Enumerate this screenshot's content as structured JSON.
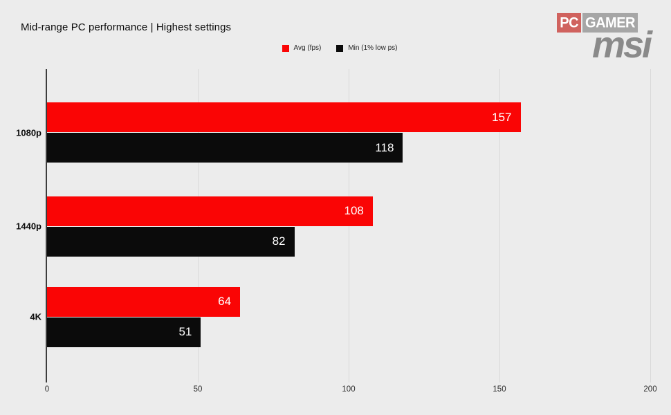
{
  "page": {
    "title": "Mid-range PC performance | Highest settings",
    "background": "#ececec"
  },
  "logos": {
    "pcgamer": {
      "pc_text": "PC",
      "gamer_text": "GAMER",
      "pc_bg": "#d0625e",
      "gamer_bg": "#a6a6a6"
    },
    "msi": {
      "text": "msi",
      "color": "#8a8a8a"
    }
  },
  "chart_data": {
    "type": "bar",
    "orientation": "horizontal",
    "title": "Mid-range PC performance | Highest settings",
    "categories": [
      "1080p",
      "1440p",
      "4K"
    ],
    "series": [
      {
        "name": "Avg (fps)",
        "color": "#fa0505",
        "values": [
          157,
          108,
          64
        ]
      },
      {
        "name": "Min (1% low ps)",
        "color": "#0b0b0b",
        "values": [
          118,
          82,
          51
        ]
      }
    ],
    "xlim": [
      0,
      200
    ],
    "x_ticks": [
      0,
      50,
      100,
      150,
      200
    ],
    "grid": true,
    "legend_position": "top-center",
    "value_labels": "inside-end",
    "value_label_color": "#ffffff",
    "axis_line_color": "#3d3d3d",
    "gridline_color": "#d9d9d9"
  }
}
